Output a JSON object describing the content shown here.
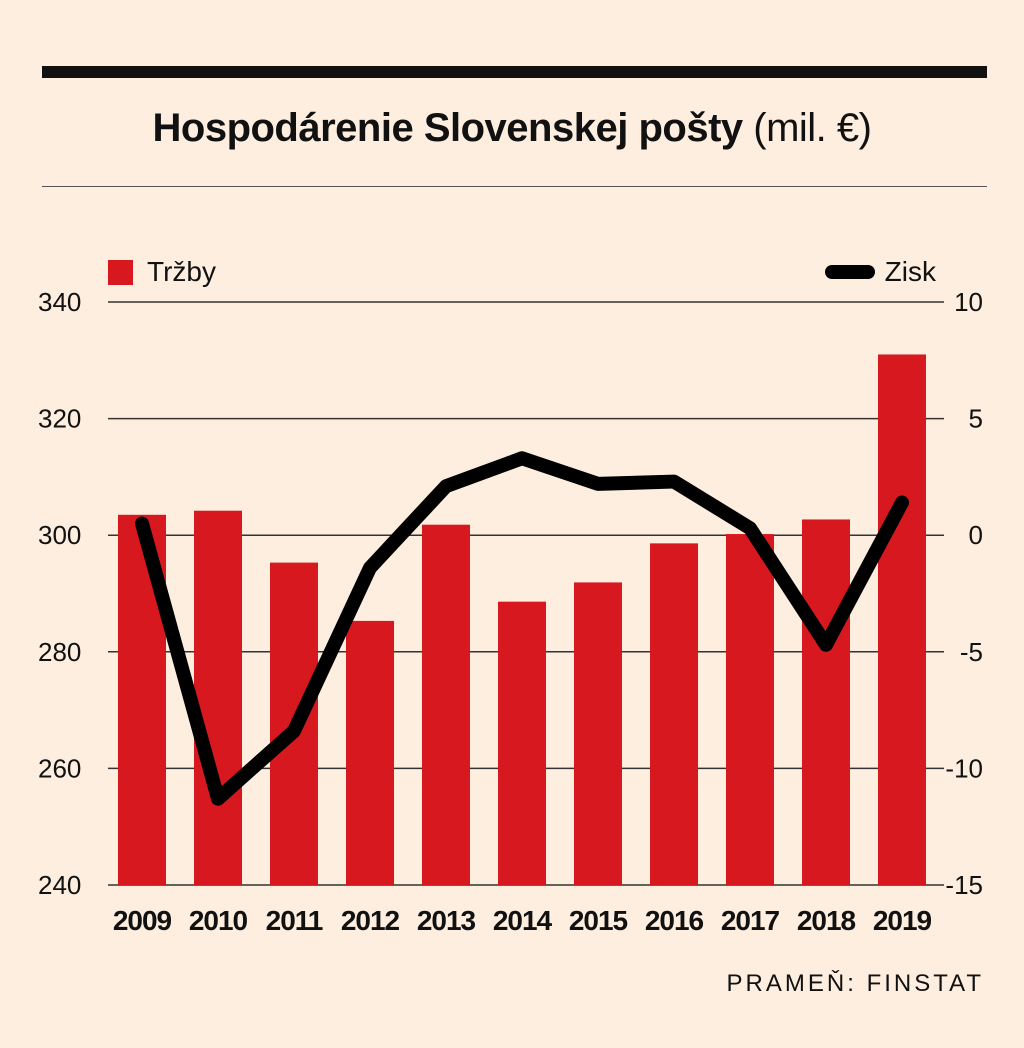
{
  "title": "Hospodárenie Slovenskej pošty",
  "title_unit": "(mil. €)",
  "source": "PRAMEŇ: FINSTAT",
  "colors": {
    "bars": "#d7191f",
    "line": "#000000",
    "background": "#fdeee0"
  },
  "chart_data": {
    "type": "bar",
    "categories": [
      "2009",
      "2010",
      "2011",
      "2012",
      "2013",
      "2014",
      "2015",
      "2016",
      "2017",
      "2018",
      "2019"
    ],
    "series": [
      {
        "name": "Tržby",
        "type": "bar",
        "axis": "left",
        "values": [
          303.5,
          304.2,
          295.3,
          285.3,
          301.8,
          288.6,
          291.9,
          298.6,
          300.2,
          302.7,
          331.0
        ]
      },
      {
        "name": "Zisk",
        "type": "line",
        "axis": "right",
        "values": [
          0.5,
          -11.3,
          -8.4,
          -1.4,
          2.1,
          3.3,
          2.2,
          2.3,
          0.3,
          -4.7,
          1.4
        ]
      }
    ],
    "ylim_left": [
      240,
      340
    ],
    "yticks_left": [
      340,
      320,
      300,
      280,
      260,
      240
    ],
    "ylim_right": [
      -15,
      10
    ],
    "yticks_right": [
      10,
      5,
      0,
      -5,
      -10,
      -15
    ],
    "grid": true,
    "legend": {
      "left": "Tržby",
      "right": "Zisk"
    }
  }
}
